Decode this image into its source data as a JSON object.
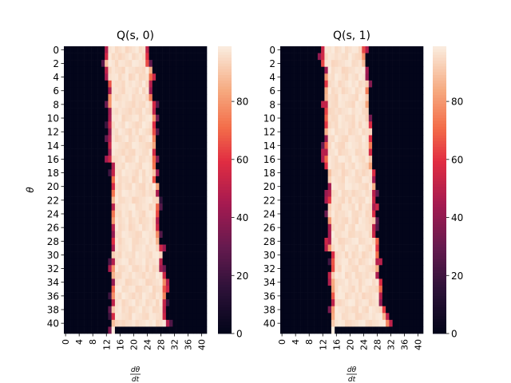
{
  "chart_data": [
    {
      "type": "heatmap",
      "title": "Q(s, 0)",
      "ylabel": "θ",
      "xlabel": "dθ/dt",
      "rows": 42,
      "cols": 42,
      "y_ticks": [
        "0",
        "2",
        "4",
        "6",
        "8",
        "10",
        "12",
        "14",
        "16",
        "18",
        "20",
        "22",
        "24",
        "26",
        "28",
        "30",
        "32",
        "34",
        "36",
        "38",
        "40"
      ],
      "x_ticks": [
        "0",
        "4",
        "8",
        "12",
        "16",
        "20",
        "24",
        "28",
        "32",
        "36",
        "40"
      ],
      "colorbar_ticks": [
        0,
        20,
        40,
        60,
        80
      ],
      "colorbar_range": [
        0,
        99
      ],
      "colormap": "rocket",
      "band": {
        "description_rows": [
          0,
          41
        ],
        "left_edge": [
          12,
          12,
          12,
          12,
          12,
          13,
          13,
          13,
          13,
          13,
          13,
          13,
          13,
          13,
          13,
          13,
          13,
          14,
          14,
          14,
          14,
          14,
          14,
          14,
          14,
          14,
          14,
          14,
          14,
          14,
          14,
          14,
          14,
          14,
          14,
          14,
          14,
          14,
          14,
          14,
          14,
          14
        ],
        "right_edge": [
          24,
          24,
          24,
          25,
          25,
          25,
          25,
          25,
          26,
          26,
          26,
          26,
          26,
          26,
          26,
          26,
          26,
          26,
          26,
          26,
          27,
          27,
          27,
          27,
          27,
          27,
          27,
          27,
          27,
          28,
          28,
          28,
          28,
          29,
          29,
          29,
          29,
          29,
          29,
          29,
          30,
          30
        ]
      }
    },
    {
      "type": "heatmap",
      "title": "Q(s, 1)",
      "ylabel": "",
      "xlabel": "dθ/dt",
      "rows": 42,
      "cols": 42,
      "y_ticks": [
        "0",
        "2",
        "4",
        "6",
        "8",
        "10",
        "12",
        "14",
        "16",
        "18",
        "20",
        "22",
        "24",
        "26",
        "28",
        "30",
        "32",
        "34",
        "36",
        "38",
        "40"
      ],
      "x_ticks": [
        "0",
        "4",
        "8",
        "12",
        "16",
        "20",
        "24",
        "28",
        "32",
        "36",
        "40"
      ],
      "colorbar_ticks": [
        0,
        20,
        40,
        60,
        80
      ],
      "colorbar_range": [
        0,
        99
      ],
      "colormap": "rocket",
      "band": {
        "left_edge": [
          12,
          12,
          12,
          13,
          13,
          13,
          13,
          13,
          13,
          13,
          13,
          13,
          13,
          13,
          13,
          13,
          13,
          13,
          14,
          14,
          14,
          14,
          14,
          14,
          14,
          14,
          14,
          14,
          14,
          14,
          15,
          15,
          15,
          15,
          15,
          15,
          15,
          15,
          15,
          15,
          15,
          15
        ],
        "right_edge": [
          24,
          24,
          24,
          25,
          25,
          25,
          25,
          25,
          25,
          25,
          25,
          26,
          26,
          26,
          26,
          26,
          26,
          26,
          27,
          27,
          27,
          27,
          27,
          27,
          27,
          27,
          27,
          27,
          28,
          28,
          28,
          28,
          28,
          28,
          29,
          29,
          29,
          29,
          30,
          30,
          31,
          31
        ]
      }
    }
  ]
}
